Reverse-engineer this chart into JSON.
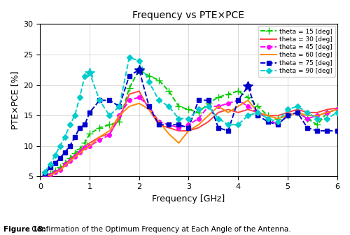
{
  "title": "Frequency vs PTE×PCE",
  "xlabel": "Frequency [GHz]",
  "ylabel": "PTE×PCE [%]",
  "xlim": [
    0,
    6
  ],
  "ylim": [
    5,
    30
  ],
  "yticks": [
    5,
    10,
    15,
    20,
    25,
    30
  ],
  "xticks": [
    0,
    1,
    2,
    3,
    4,
    5,
    6
  ],
  "caption_bold": "Figure 18:",
  "caption_normal": " Confirmation of the Optimum Frequency at Each Angle of the Antenna.",
  "background_color": "#ffffff",
  "grid_color": "#cccccc",
  "series": [
    {
      "label": "theta = 15 [deg]",
      "color": "#00cc00",
      "linestyle": "--",
      "marker": "+",
      "markersize": 7,
      "linewidth": 1.4,
      "x": [
        0.1,
        0.2,
        0.3,
        0.4,
        0.5,
        0.6,
        0.7,
        0.8,
        0.9,
        1.0,
        1.2,
        1.4,
        1.6,
        1.8,
        2.0,
        2.2,
        2.4,
        2.6,
        2.8,
        3.0,
        3.2,
        3.4,
        3.6,
        3.8,
        4.0,
        4.2,
        4.4,
        4.6,
        4.8,
        5.0,
        5.2,
        5.4,
        5.6,
        5.8,
        6.0
      ],
      "y": [
        5.2,
        5.5,
        6.0,
        6.5,
        7.2,
        8.0,
        8.8,
        9.5,
        10.5,
        12.0,
        13.0,
        13.5,
        14.0,
        19.5,
        22.5,
        21.5,
        20.8,
        19.0,
        16.5,
        16.0,
        15.5,
        17.0,
        18.0,
        18.5,
        19.0,
        18.0,
        16.5,
        15.0,
        14.5,
        15.0,
        15.5,
        14.5,
        13.5,
        15.5,
        16.0
      ],
      "star_idx": [
        14
      ]
    },
    {
      "label": "theta = 30 [deg]",
      "color": "#ff4444",
      "linestyle": "-",
      "marker": "",
      "markersize": 0,
      "linewidth": 1.4,
      "x": [
        0.1,
        0.2,
        0.3,
        0.4,
        0.5,
        0.6,
        0.7,
        0.8,
        0.9,
        1.0,
        1.2,
        1.4,
        1.6,
        1.8,
        2.0,
        2.2,
        2.4,
        2.6,
        2.8,
        3.0,
        3.2,
        3.4,
        3.6,
        3.8,
        4.0,
        4.2,
        4.4,
        4.6,
        4.8,
        5.0,
        5.2,
        5.4,
        5.6,
        5.8,
        6.0
      ],
      "y": [
        5.1,
        5.3,
        5.8,
        6.2,
        7.0,
        7.8,
        8.5,
        9.2,
        10.0,
        10.5,
        11.5,
        12.0,
        14.5,
        18.5,
        19.0,
        16.0,
        13.5,
        13.0,
        12.5,
        12.5,
        13.0,
        14.0,
        15.5,
        16.0,
        15.5,
        16.0,
        15.5,
        15.0,
        15.0,
        15.5,
        16.0,
        15.5,
        15.5,
        16.0,
        16.2
      ],
      "star_idx": []
    },
    {
      "label": "theta = 45 [deg]",
      "color": "#ff00ff",
      "linestyle": "--",
      "marker": "o",
      "markersize": 4,
      "linewidth": 1.4,
      "x": [
        0.1,
        0.2,
        0.3,
        0.4,
        0.5,
        0.6,
        0.7,
        0.8,
        0.9,
        1.0,
        1.2,
        1.4,
        1.6,
        1.8,
        2.0,
        2.2,
        2.4,
        2.6,
        2.8,
        3.0,
        3.2,
        3.4,
        3.6,
        3.8,
        4.0,
        4.2,
        4.4,
        4.6,
        4.8,
        5.0,
        5.2,
        5.4,
        5.6,
        5.8,
        6.0
      ],
      "y": [
        5.1,
        5.3,
        5.7,
        6.1,
        7.0,
        7.6,
        8.3,
        9.0,
        9.8,
        10.0,
        11.0,
        11.8,
        15.0,
        17.5,
        18.0,
        16.5,
        14.0,
        13.5,
        13.0,
        13.5,
        14.5,
        16.5,
        16.5,
        17.0,
        17.5,
        16.5,
        15.5,
        14.5,
        13.5,
        15.0,
        15.5,
        14.5,
        15.0,
        15.5,
        16.0
      ],
      "star_idx": []
    },
    {
      "label": "theta = 60 [deg]",
      "color": "#ff8800",
      "linestyle": "-",
      "marker": "",
      "markersize": 0,
      "linewidth": 1.4,
      "x": [
        0.1,
        0.2,
        0.3,
        0.4,
        0.5,
        0.6,
        0.7,
        0.8,
        0.9,
        1.0,
        1.2,
        1.4,
        1.6,
        1.8,
        2.0,
        2.2,
        2.4,
        2.6,
        2.8,
        3.0,
        3.2,
        3.4,
        3.6,
        3.8,
        4.0,
        4.2,
        4.4,
        4.6,
        4.8,
        5.0,
        5.2,
        5.4,
        5.6,
        5.8,
        6.0
      ],
      "y": [
        5.0,
        5.2,
        5.6,
        6.0,
        6.8,
        7.5,
        8.2,
        8.8,
        9.5,
        10.0,
        11.5,
        12.5,
        15.0,
        16.5,
        17.0,
        16.0,
        14.0,
        12.0,
        10.5,
        12.5,
        13.5,
        15.0,
        16.5,
        15.5,
        16.5,
        17.5,
        15.5,
        15.0,
        14.5,
        15.0,
        15.5,
        15.0,
        15.0,
        15.5,
        16.0
      ],
      "star_idx": []
    },
    {
      "label": "theta = 75 [deg]",
      "color": "#0000cc",
      "linestyle": "--",
      "marker": "s",
      "markersize": 4,
      "linewidth": 1.4,
      "x": [
        0.1,
        0.2,
        0.3,
        0.4,
        0.5,
        0.6,
        0.7,
        0.8,
        0.9,
        1.0,
        1.2,
        1.4,
        1.6,
        1.8,
        2.0,
        2.2,
        2.4,
        2.6,
        2.8,
        3.0,
        3.2,
        3.4,
        3.6,
        3.8,
        4.0,
        4.2,
        4.4,
        4.6,
        4.8,
        5.0,
        5.2,
        5.4,
        5.6,
        5.8,
        6.0
      ],
      "y": [
        5.5,
        6.5,
        7.2,
        8.0,
        9.0,
        10.0,
        11.5,
        13.0,
        13.5,
        15.5,
        17.5,
        17.5,
        16.5,
        21.5,
        22.5,
        16.5,
        13.5,
        13.5,
        13.5,
        13.0,
        17.5,
        17.5,
        13.0,
        12.5,
        17.5,
        19.8,
        15.0,
        14.0,
        13.5,
        15.0,
        15.5,
        13.0,
        12.5,
        12.5,
        12.5
      ],
      "star_idx": [
        14,
        25
      ]
    },
    {
      "label": "theta = 90 [deg]",
      "color": "#00cccc",
      "linestyle": "--",
      "marker": "D",
      "markersize": 4,
      "linewidth": 1.4,
      "x": [
        0.1,
        0.2,
        0.3,
        0.4,
        0.5,
        0.6,
        0.7,
        0.8,
        0.9,
        1.0,
        1.2,
        1.4,
        1.6,
        1.8,
        2.0,
        2.2,
        2.4,
        2.6,
        2.8,
        3.0,
        3.2,
        3.4,
        3.6,
        3.8,
        4.0,
        4.2,
        4.4,
        4.6,
        4.8,
        5.0,
        5.2,
        5.4,
        5.6,
        5.8,
        6.0
      ],
      "y": [
        5.8,
        7.0,
        8.5,
        10.0,
        11.5,
        13.5,
        15.0,
        18.0,
        21.5,
        22.0,
        17.5,
        15.0,
        16.5,
        24.5,
        24.0,
        20.5,
        17.5,
        16.5,
        14.5,
        14.5,
        16.0,
        16.5,
        14.5,
        13.5,
        13.5,
        15.0,
        15.5,
        14.5,
        14.0,
        16.0,
        16.5,
        15.5,
        14.5,
        14.5,
        15.5
      ],
      "star_idx": [
        9
      ]
    }
  ]
}
